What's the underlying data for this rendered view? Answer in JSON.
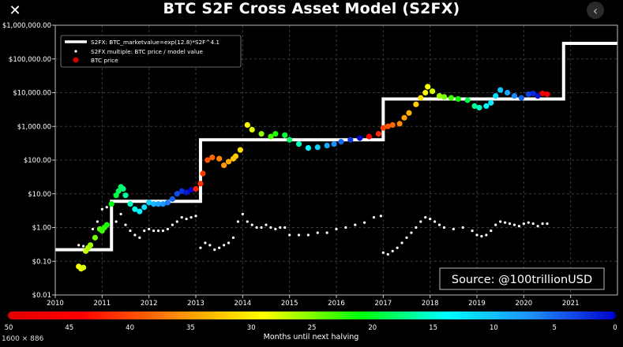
{
  "viewer": {
    "dimensions": "1600 × 886"
  },
  "chart_data": {
    "type": "scatter",
    "title": "BTC S2F Cross Asset Model (S2FX)",
    "xlabel": "",
    "ylabel": "",
    "yscale": "log",
    "xlim": [
      2010,
      2022
    ],
    "ylim": [
      0.01,
      1000000
    ],
    "background": "#000000",
    "grid": true,
    "legend_position": "top-left",
    "x_ticks": [
      "2010",
      "2011",
      "2012",
      "2013",
      "2014",
      "2015",
      "2016",
      "2017",
      "2018",
      "2019",
      "2020",
      "2021"
    ],
    "y_ticks": [
      "$0.01",
      "$0.10",
      "$1.00",
      "$10.00",
      "$100.00",
      "$1,000.00",
      "$10,000.00",
      "$100,000.00",
      "$1,000,000.00"
    ],
    "legend": [
      "S2FX: BTC_marketvalue=exp(12.8)*S2F^4.1",
      "S2FX multiple: BTC price / model value",
      "BTC price"
    ],
    "annotation": "Source:   @100trillionUSD",
    "colorbar": {
      "label": "Months until next halving",
      "ticks": [
        "50",
        "45",
        "40",
        "35",
        "30",
        "25",
        "20",
        "15",
        "10",
        "5",
        "0"
      ]
    },
    "model_steps": [
      {
        "x": 2010.0,
        "y": 0.22
      },
      {
        "x": 2011.2,
        "y": 6.0
      },
      {
        "x": 2013.1,
        "y": 400
      },
      {
        "x": 2017.0,
        "y": 6500
      },
      {
        "x": 2020.85,
        "y": 290000
      },
      {
        "x": 2022.0,
        "y": 290000
      }
    ],
    "series": [
      {
        "name": "BTC price",
        "x": [
          2010.5,
          2010.55,
          2010.6,
          2010.65,
          2010.7,
          2010.75,
          2010.85,
          2010.95,
          2011.0,
          2011.05,
          2011.1,
          2011.2,
          2011.3,
          2011.35,
          2011.4,
          2011.45,
          2011.5,
          2011.6,
          2011.7,
          2011.8,
          2011.9,
          2012.0,
          2012.1,
          2012.2,
          2012.3,
          2012.4,
          2012.5,
          2012.6,
          2012.7,
          2012.8,
          2012.9,
          2013.0,
          2013.1,
          2013.15,
          2013.25,
          2013.35,
          2013.5,
          2013.6,
          2013.7,
          2013.8,
          2013.85,
          2013.95,
          2014.1,
          2014.2,
          2014.4,
          2014.6,
          2014.7,
          2014.9,
          2015.0,
          2015.2,
          2015.4,
          2015.6,
          2015.8,
          2015.95,
          2016.1,
          2016.3,
          2016.5,
          2016.7,
          2016.9,
          2017.0,
          2017.1,
          2017.2,
          2017.35,
          2017.45,
          2017.55,
          2017.7,
          2017.8,
          2017.9,
          2017.95,
          2018.05,
          2018.2,
          2018.3,
          2018.45,
          2018.6,
          2018.8,
          2018.95,
          2019.05,
          2019.2,
          2019.3,
          2019.4,
          2019.5,
          2019.65,
          2019.8,
          2019.95,
          2020.1,
          2020.2,
          2020.3,
          2020.4,
          2020.5
        ],
        "y": [
          0.07,
          0.06,
          0.065,
          0.2,
          0.25,
          0.3,
          0.5,
          0.9,
          0.8,
          1.0,
          1.2,
          5.0,
          9.0,
          12.0,
          16.0,
          14.0,
          9.0,
          5.0,
          3.5,
          3.0,
          4.0,
          5.5,
          5.0,
          5.0,
          5.0,
          5.5,
          7.0,
          10.0,
          12.0,
          11.0,
          13.0,
          14.0,
          20.0,
          40.0,
          100,
          120,
          110,
          70,
          90,
          110,
          130,
          200,
          1100,
          800,
          600,
          500,
          600,
          550,
          400,
          300,
          230,
          240,
          270,
          300,
          350,
          400,
          450,
          500,
          600,
          900,
          1000,
          1100,
          1200,
          1800,
          2500,
          4500,
          7000,
          10000,
          15000,
          11000,
          8000,
          7500,
          7000,
          6500,
          6000,
          4000,
          3600,
          4000,
          5000,
          8000,
          12000,
          10000,
          8000,
          7000,
          9000,
          9500,
          8000,
          9500,
          9000
        ]
      },
      {
        "name": "S2FX multiple: BTC price / model value",
        "x": [
          2010.5,
          2010.6,
          2010.7,
          2010.8,
          2010.9,
          2011.0,
          2011.1,
          2011.2,
          2011.3,
          2011.4,
          2011.5,
          2011.6,
          2011.7,
          2011.8,
          2011.9,
          2012.0,
          2012.1,
          2012.2,
          2012.3,
          2012.4,
          2012.5,
          2012.6,
          2012.7,
          2012.8,
          2012.9,
          2013.0,
          2013.1,
          2013.2,
          2013.3,
          2013.4,
          2013.5,
          2013.6,
          2013.7,
          2013.8,
          2013.9,
          2014.0,
          2014.1,
          2014.2,
          2014.3,
          2014.4,
          2014.5,
          2014.6,
          2014.7,
          2014.8,
          2014.9,
          2015.0,
          2015.2,
          2015.4,
          2015.6,
          2015.8,
          2016.0,
          2016.2,
          2016.4,
          2016.6,
          2016.8,
          2016.95,
          2017.0,
          2017.1,
          2017.2,
          2017.3,
          2017.4,
          2017.5,
          2017.6,
          2017.7,
          2017.8,
          2017.9,
          2018.0,
          2018.1,
          2018.2,
          2018.3,
          2018.5,
          2018.7,
          2018.9,
          2019.0,
          2019.1,
          2019.2,
          2019.3,
          2019.4,
          2019.5,
          2019.6,
          2019.7,
          2019.8,
          2019.9,
          2020.0,
          2020.1,
          2020.2,
          2020.3,
          2020.4,
          2020.5
        ],
        "y": [
          0.3,
          0.28,
          0.27,
          0.9,
          1.5,
          3.5,
          4.0,
          2.5,
          1.5,
          2.5,
          1.2,
          0.8,
          0.6,
          0.5,
          0.8,
          0.9,
          0.8,
          0.8,
          0.8,
          0.9,
          1.2,
          1.5,
          2.0,
          1.8,
          2.0,
          2.2,
          0.25,
          0.35,
          0.3,
          0.22,
          0.25,
          0.3,
          0.35,
          0.5,
          1.5,
          2.5,
          1.5,
          1.2,
          1.0,
          1.0,
          1.2,
          1.0,
          0.9,
          1.0,
          1.0,
          0.6,
          0.6,
          0.6,
          0.7,
          0.7,
          0.9,
          1.0,
          1.2,
          1.4,
          2.0,
          2.2,
          0.18,
          0.16,
          0.2,
          0.25,
          0.35,
          0.5,
          0.7,
          1.0,
          1.5,
          2.0,
          1.8,
          1.5,
          1.2,
          1.0,
          0.9,
          1.0,
          0.8,
          0.6,
          0.55,
          0.6,
          0.8,
          1.2,
          1.5,
          1.4,
          1.3,
          1.2,
          1.1,
          1.3,
          1.4,
          1.3,
          1.1,
          1.3,
          1.3
        ]
      }
    ]
  }
}
